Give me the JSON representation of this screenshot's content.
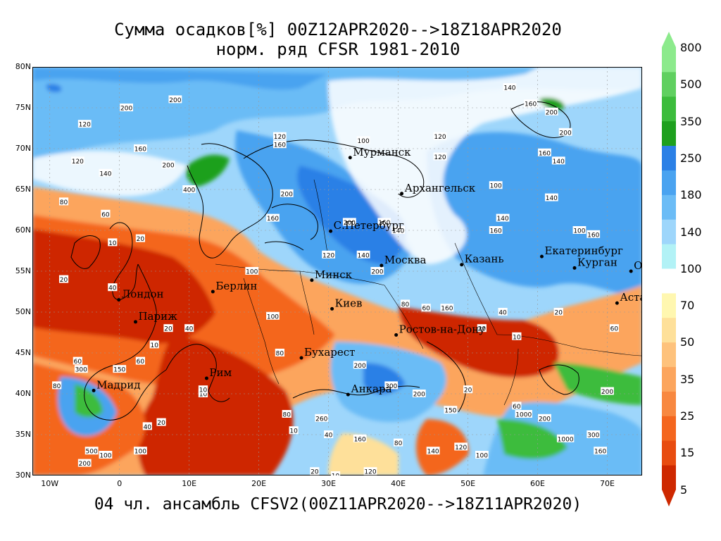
{
  "title_line1": "Сумма осадков[%] 00Z12APR2020-->18Z18APR2020",
  "title_line2": "норм. ряд CFSR 1981-2010",
  "footer": "04 чл. ансамбль CFSV2(00Z11APR2020-->18Z11APR2020)",
  "lat_labels": [
    "80N",
    "75N",
    "70N",
    "65N",
    "60N",
    "55N",
    "50N",
    "45N",
    "40N",
    "35N",
    "30N"
  ],
  "lon_labels": [
    "10W",
    "0",
    "10E",
    "20E",
    "30E",
    "40E",
    "50E",
    "60E",
    "70E"
  ],
  "legend": {
    "colors": [
      "#ce2800",
      "#e84c10",
      "#f4661e",
      "#f88840",
      "#fca55d",
      "#fec27c",
      "#fee09a",
      "#fff7b0",
      "#ffffff",
      "#b2f2f6",
      "#9ed6fb",
      "#6bbcf6",
      "#4aa3f0",
      "#2b80e6",
      "#1ea01e",
      "#3cbc3c",
      "#60d060",
      "#8cea8c"
    ],
    "labels": [
      "800",
      "500",
      "350",
      "250",
      "180",
      "140",
      "100",
      "70",
      "50",
      "35",
      "25",
      "15",
      "5"
    ]
  },
  "cities": [
    {
      "name": "Мурманск",
      "lon": 33.1,
      "lat": 68.9
    },
    {
      "name": "Архангельск",
      "lon": 40.5,
      "lat": 64.5
    },
    {
      "name": "С.Петербург",
      "lon": 30.3,
      "lat": 59.9
    },
    {
      "name": "Москва",
      "lon": 37.6,
      "lat": 55.7
    },
    {
      "name": "Казань",
      "lon": 49.1,
      "lat": 55.8
    },
    {
      "name": "Екатеринбург",
      "lon": 60.6,
      "lat": 56.8
    },
    {
      "name": "Курган",
      "lon": 65.3,
      "lat": 55.4
    },
    {
      "name": "Омск",
      "lon": 73.4,
      "lat": 55.0
    },
    {
      "name": "Астана",
      "lon": 71.4,
      "lat": 51.1
    },
    {
      "name": "Минск",
      "lon": 27.6,
      "lat": 53.9
    },
    {
      "name": "Киев",
      "lon": 30.5,
      "lat": 50.4
    },
    {
      "name": "Ростов-на-Дону",
      "lon": 39.7,
      "lat": 47.2
    },
    {
      "name": "Берлин",
      "lon": 13.4,
      "lat": 52.5
    },
    {
      "name": "Лондон",
      "lon": -0.1,
      "lat": 51.5
    },
    {
      "name": "Париж",
      "lon": 2.3,
      "lat": 48.8
    },
    {
      "name": "Мадрид",
      "lon": -3.7,
      "lat": 40.4
    },
    {
      "name": "Рим",
      "lon": 12.5,
      "lat": 41.9
    },
    {
      "name": "Бухарест",
      "lon": 26.1,
      "lat": 44.4
    },
    {
      "name": "Анкара",
      "lon": 32.8,
      "lat": 39.9
    }
  ],
  "contour_labels": [
    {
      "t": "200",
      "lon": 1,
      "lat": 75
    },
    {
      "t": "200",
      "lon": 8,
      "lat": 76
    },
    {
      "t": "120",
      "lon": -5,
      "lat": 73
    },
    {
      "t": "160",
      "lon": 3,
      "lat": 70
    },
    {
      "t": "140",
      "lon": -2,
      "lat": 67
    },
    {
      "t": "200",
      "lon": 7,
      "lat": 68
    },
    {
      "t": "120",
      "lon": -6,
      "lat": 68.5
    },
    {
      "t": "400",
      "lon": 10,
      "lat": 65
    },
    {
      "t": "80",
      "lon": -8,
      "lat": 63.5
    },
    {
      "t": "60",
      "lon": -2,
      "lat": 62
    },
    {
      "t": "10",
      "lon": -1,
      "lat": 58.5
    },
    {
      "t": "20",
      "lon": 3,
      "lat": 59
    },
    {
      "t": "40",
      "lon": -1,
      "lat": 53
    },
    {
      "t": "20",
      "lon": -8,
      "lat": 54
    },
    {
      "t": "20",
      "lon": 7,
      "lat": 48
    },
    {
      "t": "40",
      "lon": 10,
      "lat": 48
    },
    {
      "t": "10",
      "lon": 5,
      "lat": 46
    },
    {
      "t": "60",
      "lon": -6,
      "lat": 44
    },
    {
      "t": "300",
      "lon": -5.5,
      "lat": 43
    },
    {
      "t": "150",
      "lon": 0,
      "lat": 43
    },
    {
      "t": "60",
      "lon": 3,
      "lat": 44
    },
    {
      "t": "80",
      "lon": -9,
      "lat": 41
    },
    {
      "t": "10",
      "lon": 12,
      "lat": 40
    },
    {
      "t": "40",
      "lon": 4,
      "lat": 36
    },
    {
      "t": "20",
      "lon": 6,
      "lat": 36.5
    },
    {
      "t": "500",
      "lon": -4,
      "lat": 33
    },
    {
      "t": "100",
      "lon": -2,
      "lat": 32.5
    },
    {
      "t": "100",
      "lon": 3,
      "lat": 33
    },
    {
      "t": "200",
      "lon": -5,
      "lat": 31.5
    },
    {
      "t": "120",
      "lon": 23,
      "lat": 71.5
    },
    {
      "t": "160",
      "lon": 23,
      "lat": 70.5
    },
    {
      "t": "100",
      "lon": 35,
      "lat": 71
    },
    {
      "t": "120",
      "lon": 46,
      "lat": 71.5
    },
    {
      "t": "120",
      "lon": 46,
      "lat": 69
    },
    {
      "t": "140",
      "lon": 56,
      "lat": 77.5
    },
    {
      "t": "160",
      "lon": 59,
      "lat": 75.5
    },
    {
      "t": "200",
      "lon": 62,
      "lat": 74.5
    },
    {
      "t": "200",
      "lon": 64,
      "lat": 72
    },
    {
      "t": "160",
      "lon": 61,
      "lat": 69.5
    },
    {
      "t": "140",
      "lon": 63,
      "lat": 68.5
    },
    {
      "t": "100",
      "lon": 54,
      "lat": 65.5
    },
    {
      "t": "140",
      "lon": 62,
      "lat": 64
    },
    {
      "t": "140",
      "lon": 55,
      "lat": 61.5
    },
    {
      "t": "160",
      "lon": 54,
      "lat": 60
    },
    {
      "t": "100",
      "lon": 66,
      "lat": 60
    },
    {
      "t": "160",
      "lon": 68,
      "lat": 59.5
    },
    {
      "t": "200",
      "lon": 24,
      "lat": 64.5
    },
    {
      "t": "160",
      "lon": 22,
      "lat": 61.5
    },
    {
      "t": "200",
      "lon": 33,
      "lat": 61
    },
    {
      "t": "160",
      "lon": 38,
      "lat": 61
    },
    {
      "t": "140",
      "lon": 40,
      "lat": 60
    },
    {
      "t": "120",
      "lon": 30,
      "lat": 57
    },
    {
      "t": "140",
      "lon": 35,
      "lat": 57
    },
    {
      "t": "200",
      "lon": 37,
      "lat": 55
    },
    {
      "t": "100",
      "lon": 19,
      "lat": 55
    },
    {
      "t": "100",
      "lon": 22,
      "lat": 49.5
    },
    {
      "t": "80",
      "lon": 41,
      "lat": 51
    },
    {
      "t": "60",
      "lon": 44,
      "lat": 50.5
    },
    {
      "t": "160",
      "lon": 47,
      "lat": 50.5
    },
    {
      "t": "40",
      "lon": 55,
      "lat": 50
    },
    {
      "t": "20",
      "lon": 52,
      "lat": 48
    },
    {
      "t": "10",
      "lon": 57,
      "lat": 47
    },
    {
      "t": "60",
      "lon": 71,
      "lat": 48
    },
    {
      "t": "20",
      "lon": 63,
      "lat": 50
    },
    {
      "t": "80",
      "lon": 23,
      "lat": 45
    },
    {
      "t": "200",
      "lon": 34.5,
      "lat": 43.5
    },
    {
      "t": "300",
      "lon": 39,
      "lat": 41
    },
    {
      "t": "200",
      "lon": 43,
      "lat": 40
    },
    {
      "t": "150",
      "lon": 47.5,
      "lat": 38
    },
    {
      "t": "20",
      "lon": 50,
      "lat": 40.5
    },
    {
      "t": "60",
      "lon": 57,
      "lat": 38.5
    },
    {
      "t": "1000",
      "lon": 58,
      "lat": 37.5
    },
    {
      "t": "200",
      "lon": 61,
      "lat": 37
    },
    {
      "t": "1000",
      "lon": 64,
      "lat": 34.5
    },
    {
      "t": "300",
      "lon": 68,
      "lat": 35
    },
    {
      "t": "160",
      "lon": 69,
      "lat": 33
    },
    {
      "t": "40",
      "lon": 30,
      "lat": 35
    },
    {
      "t": "160",
      "lon": 34.5,
      "lat": 34.5
    },
    {
      "t": "80",
      "lon": 40,
      "lat": 34
    },
    {
      "t": "120",
      "lon": 49,
      "lat": 33.5
    },
    {
      "t": "100",
      "lon": 52,
      "lat": 32.5
    },
    {
      "t": "140",
      "lon": 45,
      "lat": 33
    },
    {
      "t": "120",
      "lon": 36,
      "lat": 30.5
    },
    {
      "t": "20",
      "lon": 28,
      "lat": 30.5
    },
    {
      "t": "260",
      "lon": 29,
      "lat": 37
    },
    {
      "t": "80",
      "lon": 24,
      "lat": 37.5
    },
    {
      "t": "10",
      "lon": 25,
      "lat": 35.5
    },
    {
      "t": "10",
      "lon": 12,
      "lat": 40.5
    },
    {
      "t": "10",
      "lon": 31,
      "lat": 30
    },
    {
      "t": "200",
      "lon": 70,
      "lat": 40.3
    }
  ]
}
